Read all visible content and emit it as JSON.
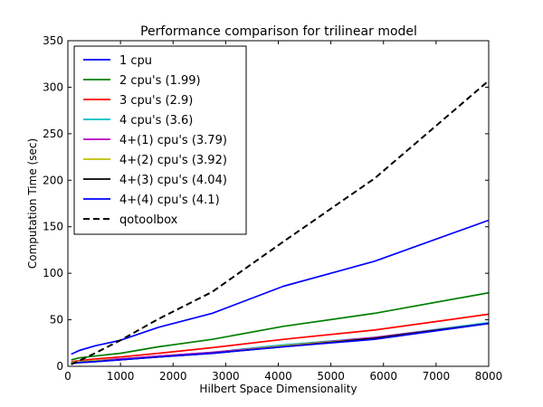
{
  "chart_data": {
    "type": "line",
    "title": "Performance comparison for trilinear model",
    "xlabel": "Hilbert Space Dimensionality",
    "ylabel": "Computation Time (sec)",
    "xlim": [
      0,
      8000
    ],
    "ylim": [
      0,
      350
    ],
    "xticks": [
      0,
      1000,
      2000,
      3000,
      4000,
      5000,
      6000,
      7000,
      8000
    ],
    "yticks": [
      0,
      50,
      100,
      150,
      200,
      250,
      300,
      350
    ],
    "grid": false,
    "legend_position": "top-left",
    "x": [
      64,
      216,
      512,
      1000,
      1728,
      2744,
      4096,
      5832,
      8000
    ],
    "series": [
      {
        "name": "1 cpu",
        "color": "#0000ff",
        "dash": "solid",
        "values": [
          13,
          17,
          22,
          28,
          42,
          57,
          86,
          113,
          157
        ]
      },
      {
        "name": "2 cpu's (1.99)",
        "color": "#007f00",
        "dash": "solid",
        "values": [
          7,
          9,
          11,
          14,
          21,
          29,
          43,
          57,
          79
        ]
      },
      {
        "name": "3 cpu's (2.9)",
        "color": "#ff0000",
        "dash": "solid",
        "values": [
          5,
          6,
          8,
          10,
          14,
          20,
          29,
          39,
          56
        ]
      },
      {
        "name": "4 cpu's (3.6)",
        "color": "#00bfbf",
        "dash": "solid",
        "values": [
          4,
          5,
          6,
          8,
          11,
          15,
          23,
          31,
          47
        ]
      },
      {
        "name": "4+(1) cpu's (3.79)",
        "color": "#bf00bf",
        "dash": "solid",
        "values": [
          4,
          5,
          6,
          8,
          11,
          15,
          22,
          31,
          46
        ]
      },
      {
        "name": "4+(2) cpu's (3.92)",
        "color": "#bfbf00",
        "dash": "solid",
        "values": [
          4,
          5,
          6,
          7,
          10,
          14,
          22,
          30,
          46
        ]
      },
      {
        "name": "4+(3) cpu's (4.04)",
        "color": "#000000",
        "dash": "solid",
        "values": [
          3,
          4,
          5,
          7,
          10,
          14,
          21,
          30,
          46
        ]
      },
      {
        "name": "4+(4) cpu's (4.1)",
        "color": "#0000ff",
        "dash": "solid",
        "values": [
          3,
          4,
          5,
          7,
          10,
          14,
          21,
          29,
          46
        ]
      },
      {
        "name": "qotoolbox",
        "color": "#000000",
        "dash": "dashed",
        "values": [
          2,
          6,
          14,
          28,
          51,
          80,
          134,
          202,
          307
        ]
      }
    ]
  }
}
